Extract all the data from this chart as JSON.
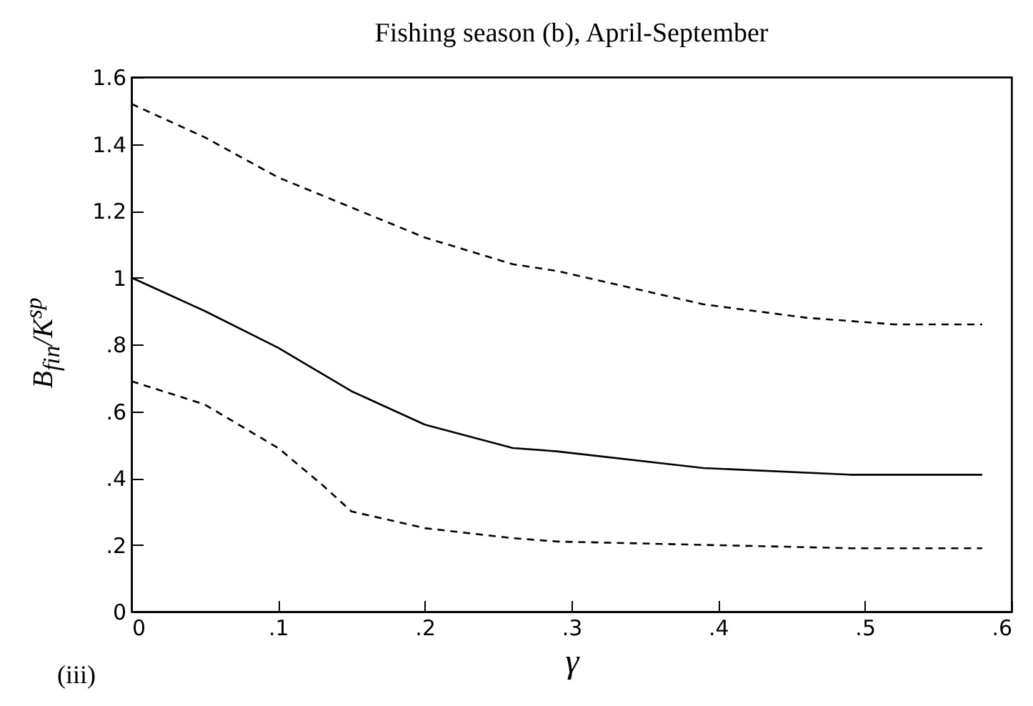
{
  "chart_data": {
    "type": "line",
    "title": "Fishing season (b), April-September",
    "xlabel": "γ",
    "ylabel": "B$_{fin}$/K$^{sp}$",
    "annotations": [
      "(iii)"
    ],
    "xlim": [
      0,
      0.6
    ],
    "ylim": [
      0,
      1.6
    ],
    "xticks": [
      0,
      {
        "value": 0.1,
        "label": ".1"
      },
      {
        "value": 0.2,
        "label": ".2"
      },
      {
        "value": 0.3,
        "label": ".3"
      },
      {
        "value": 0.4,
        "label": ".4"
      },
      {
        "value": 0.5,
        "label": ".5"
      },
      {
        "value": 0.6,
        "label": ".6"
      }
    ],
    "yticks": [
      0,
      {
        "value": 0.2,
        "label": ".2"
      },
      {
        "value": 0.4,
        "label": ".4"
      },
      {
        "value": 0.6,
        "label": ".6"
      },
      {
        "value": 0.8,
        "label": ".8"
      },
      1,
      1.2,
      1.4,
      1.6
    ],
    "grid": false,
    "marker": "none",
    "series": [
      {
        "color": "#000000",
        "line_style": "dashed",
        "x": [
          0,
          0.05,
          0.1,
          0.15,
          0.2,
          0.26,
          0.29,
          0.39,
          0.46,
          0.52,
          0.58
        ],
        "values": [
          1.52,
          1.42,
          1.3,
          1.21,
          1.12,
          1.04,
          1.02,
          0.92,
          0.88,
          0.86,
          0.86
        ]
      },
      {
        "color": "#000000",
        "line_style": "solid",
        "x": [
          0,
          0.05,
          0.1,
          0.15,
          0.2,
          0.26,
          0.29,
          0.39,
          0.49,
          0.58
        ],
        "values": [
          1.0,
          0.9,
          0.79,
          0.66,
          0.56,
          0.49,
          0.48,
          0.43,
          0.41,
          0.41
        ]
      },
      {
        "color": "#000000",
        "line_style": "dashed",
        "x": [
          0,
          0.05,
          0.1,
          0.13,
          0.15,
          0.2,
          0.26,
          0.29,
          0.39,
          0.49,
          0.58
        ],
        "values": [
          0.69,
          0.62,
          0.49,
          0.38,
          0.3,
          0.25,
          0.22,
          0.21,
          0.2,
          0.19,
          0.19
        ]
      }
    ]
  }
}
